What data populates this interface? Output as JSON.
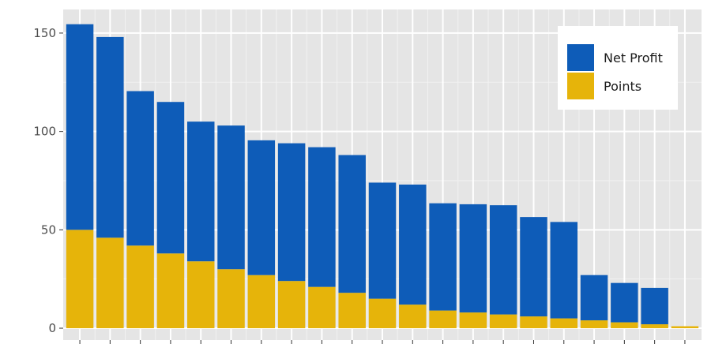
{
  "chart_data": {
    "type": "bar",
    "stacked": true,
    "categories": [
      "",
      "",
      "",
      "",
      "",
      "",
      "",
      "",
      "",
      "",
      "",
      "",
      "",
      "",
      "",
      "",
      "",
      "",
      "",
      "",
      ""
    ],
    "series": [
      {
        "name": "Points",
        "color": "#E6B40A",
        "values": [
          50,
          46,
          42,
          38,
          34,
          30,
          27,
          24,
          21,
          18,
          15,
          12,
          9,
          8,
          7,
          6,
          5,
          4,
          3,
          2,
          1
        ]
      },
      {
        "name": "Net Profit",
        "color": "#0E5CB8",
        "values": [
          104.5,
          102,
          78.5,
          77,
          71,
          73,
          68.5,
          70,
          71,
          70,
          59,
          61,
          54.5,
          55,
          55.5,
          50.5,
          49,
          23,
          20,
          18.5,
          0
        ]
      }
    ],
    "y_ticks": [
      0,
      50,
      100,
      150
    ],
    "ylim": [
      -6,
      162
    ],
    "grid": true,
    "legend": {
      "position": "top-right",
      "order": [
        "Net Profit",
        "Points"
      ]
    },
    "title": "",
    "xlabel": "",
    "ylabel": ""
  },
  "colors": {
    "panel_background": "#E5E5E5",
    "grid_major": "#FFFFFF",
    "grid_minor": "#F2F2F2"
  }
}
